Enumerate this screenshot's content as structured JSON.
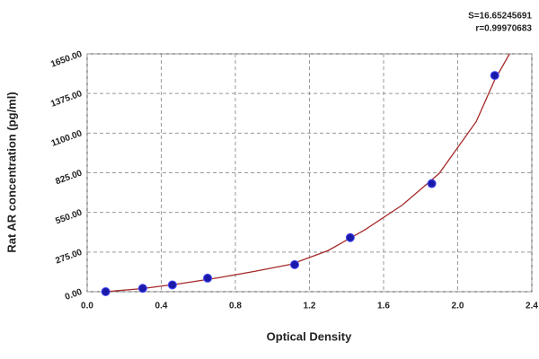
{
  "chart_data": {
    "type": "scatter",
    "xlabel": "Optical Density",
    "ylabel": "Rat AR concentration (pg/ml)",
    "annotations": [
      "S=16.65245691",
      "r=0.99970683"
    ],
    "series": [
      {
        "color": "#1a1aa8",
        "x": [
          0.1,
          0.3,
          0.46,
          0.65,
          1.12,
          1.42,
          1.86,
          2.2
        ],
        "values": [
          0,
          23.4,
          46.9,
          93.8,
          187.5,
          375,
          750,
          1500
        ]
      },
      {
        "color": "#a52a2a",
        "x": [
          0.1,
          0.3,
          0.5,
          0.7,
          0.9,
          1.1,
          1.3,
          1.5,
          1.7,
          1.9,
          2.1,
          2.2,
          2.28
        ],
        "values": [
          0,
          22,
          55,
          95,
          140,
          190,
          285,
          430,
          600,
          820,
          1180,
          1470,
          1650
        ]
      }
    ],
    "xlim": [
      0,
      2.4
    ],
    "xticks": [
      {
        "value": 0,
        "label": "0.0"
      },
      0.4,
      0.8,
      1.2,
      1.6,
      {
        "value": 2,
        "label": "2.0"
      },
      2.4
    ],
    "ylim": [
      0,
      1650
    ],
    "yticks": [
      {
        "value": 0,
        "label": "0.00"
      },
      {
        "value": 275,
        "label": "275.00"
      },
      {
        "value": 550,
        "label": "550.00"
      },
      {
        "value": 825,
        "label": "825.00"
      },
      {
        "value": 1100,
        "label": "1100.00"
      },
      {
        "value": 1375,
        "label": "1375.00"
      },
      {
        "value": 1650,
        "label": "1650.00"
      }
    ],
    "grid": true
  }
}
